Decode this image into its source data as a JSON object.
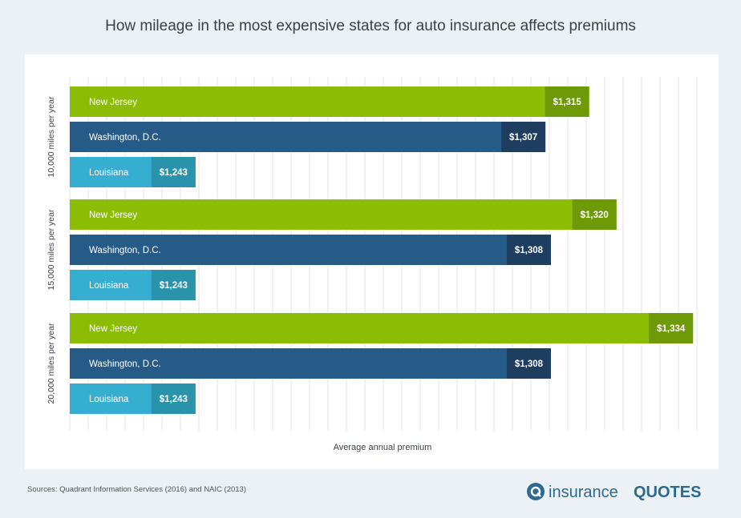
{
  "title": "How mileage in the most expensive states for auto insurance affects premiums",
  "source": "Sources: Quadrant Information Services (2016) and NAIC (2013)",
  "logo": {
    "icon": "iq-circle-icon",
    "text_left": "insurance",
    "text_right": "QUOTES",
    "color": "#2a6b8e"
  },
  "chart_data": {
    "type": "bar",
    "orientation": "horizontal",
    "xlabel": "Average annual premium",
    "groups": [
      "10,000 miles per year",
      "15,000 miles per year",
      "20,000 miles per year"
    ],
    "series": [
      {
        "name": "New Jersey",
        "values": [
          1315,
          1320,
          1334
        ],
        "color": "#8cbd04",
        "value_color": "#6e9a07"
      },
      {
        "name": "Washington, D.C.",
        "values": [
          1307,
          1308,
          1308
        ],
        "color": "#265b87",
        "value_color": "#1e3e60"
      },
      {
        "name": "Louisiana",
        "values": [
          1243,
          1243,
          1243
        ],
        "color": "#35aed0",
        "value_color": "#2993ac"
      }
    ],
    "value_labels": [
      [
        "$1,315",
        "$1,320",
        "$1,334"
      ],
      [
        "$1,307",
        "$1,308",
        "$1,308"
      ],
      [
        "$1,243",
        "$1,243",
        "$1,243"
      ]
    ],
    "xlim": [
      1220,
      1335
    ],
    "grid": true,
    "legend": "none"
  }
}
